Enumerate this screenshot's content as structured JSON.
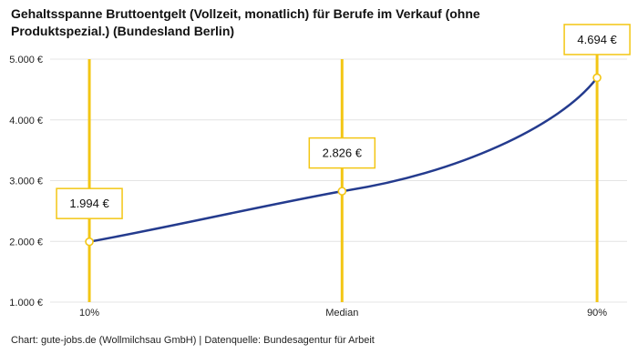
{
  "title": "Gehaltsspanne Bruttoentgelt (Vollzeit, monatlich) für Berufe im Verkauf (ohne Produktspezial.) (Bundesland Berlin)",
  "footer": "Chart: gute-jobs.de (Wollmilchsau GmbH) | Datenquelle: Bundesagentur für Arbeit",
  "chart_data": {
    "type": "line",
    "title": "Gehaltsspanne Bruttoentgelt (Vollzeit, monatlich) für Berufe im Verkauf (ohne Produktspezial.) (Bundesland Berlin)",
    "categories": [
      "10%",
      "Median",
      "90%"
    ],
    "values": [
      1994,
      2826,
      4694
    ],
    "value_labels": [
      "1.994 €",
      "2.826 €",
      "4.694 €"
    ],
    "y_ticks": [
      1000,
      2000,
      3000,
      4000,
      5000
    ],
    "y_tick_labels": [
      "1.000 €",
      "2.000 €",
      "3.000 €",
      "4.000 €",
      "5.000 €"
    ],
    "ylim": [
      1000,
      5000
    ],
    "xlabel": "",
    "ylabel": "",
    "grid": true,
    "legend": "none",
    "colors": {
      "line": "#243b8e",
      "marker_fill": "#ffffff",
      "marker_stroke": "#f3c614",
      "vline": "#f3c614",
      "label_box_border": "#f3c614",
      "label_box_fill": "#ffffff",
      "grid": "#e4e4e4",
      "text": "#222222"
    }
  }
}
